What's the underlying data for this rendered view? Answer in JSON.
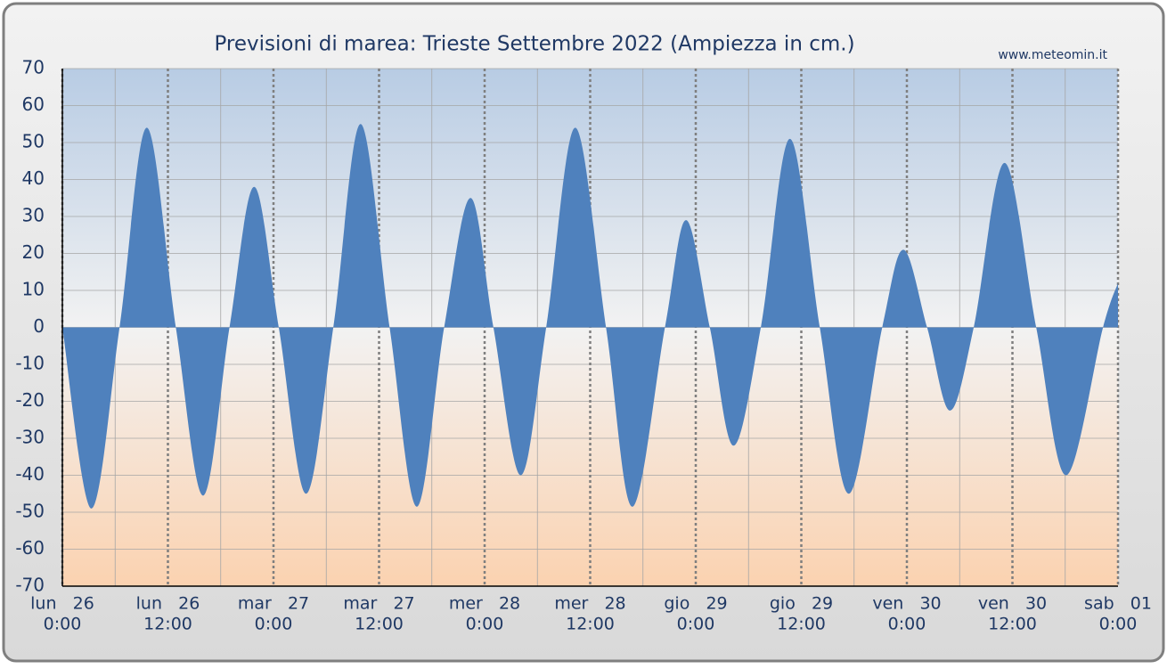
{
  "chart_data": {
    "type": "area",
    "title": "Previsioni di marea: Trieste Settembre 2022 (Ampiezza in cm.)",
    "source": "www.meteomin.it",
    "color": "#4f81bd",
    "x": [
      0,
      3.3,
      6.5,
      9.6,
      12.9,
      16.0,
      19.0,
      21.8,
      24.6,
      27.7,
      30.8,
      33.9,
      37.2,
      40.3,
      43.4,
      46.4,
      49.0,
      52.1,
      55.0,
      58.3,
      61.8,
      64.8,
      68.5,
      70.9,
      73.6,
      76.3,
      79.4,
      82.7,
      86.1,
      89.4,
      93.2,
      95.6,
      98.3,
      100.9,
      103.6,
      107.1,
      110.7,
      114.1,
      118.3,
      120
    ],
    "values": [
      0,
      -49,
      0,
      54,
      0,
      -45.5,
      0,
      38,
      0,
      -45,
      0,
      55,
      0,
      -48.5,
      0,
      35,
      0,
      -40,
      0,
      54,
      0,
      -48.5,
      0,
      29,
      0,
      -32,
      0,
      51,
      0,
      -45,
      0,
      21,
      0,
      -22.5,
      0,
      44.5,
      0,
      -40,
      0,
      12
    ],
    "xlim": [
      0,
      120
    ],
    "xticks": [
      {
        "value": 0,
        "label": [
          "lun   26",
          "0:00"
        ]
      },
      {
        "value": 12,
        "label": [
          "lun   26",
          "12:00"
        ]
      },
      {
        "value": 24,
        "label": [
          "mar   27",
          "0:00"
        ]
      },
      {
        "value": 36,
        "label": [
          "mar   27",
          "12:00"
        ]
      },
      {
        "value": 48,
        "label": [
          "mer   28",
          "0:00"
        ]
      },
      {
        "value": 60,
        "label": [
          "mer   28",
          "12:00"
        ]
      },
      {
        "value": 72,
        "label": [
          "gio   29",
          "0:00"
        ]
      },
      {
        "value": 84,
        "label": [
          "gio   29",
          "12:00"
        ]
      },
      {
        "value": 96,
        "label": [
          "ven   30",
          "0:00"
        ]
      },
      {
        "value": 108,
        "label": [
          "ven   30",
          "12:00"
        ]
      },
      {
        "value": 120,
        "label": [
          "sab   01",
          "0:00"
        ]
      }
    ],
    "ylim": [
      -70,
      70
    ],
    "yticks": [
      -70,
      -60,
      -50,
      -40,
      -30,
      -20,
      -10,
      0,
      10,
      20,
      30,
      40,
      50,
      60,
      70
    ],
    "grid": true
  }
}
